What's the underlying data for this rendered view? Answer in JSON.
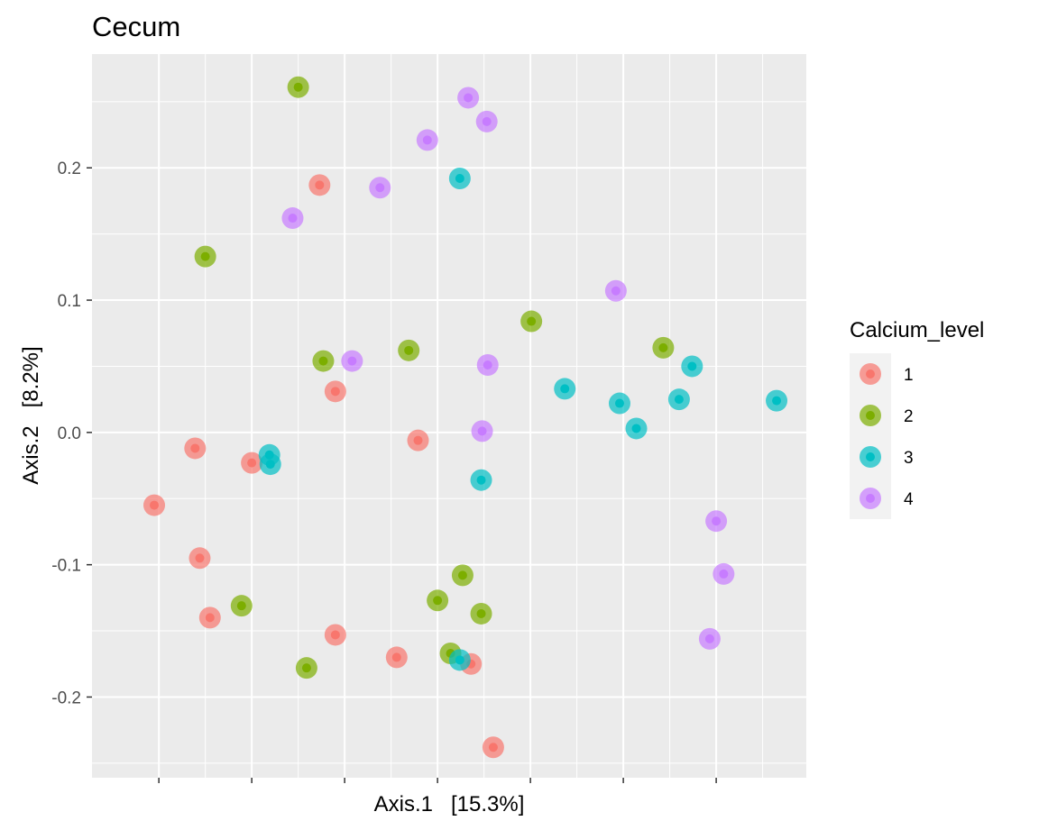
{
  "chart_data": {
    "type": "scatter",
    "title": "Cecum",
    "xlabel": "Axis.1   [15.3%]",
    "ylabel": "Axis.2   [8.2%]",
    "xlim": [
      -0.372,
      0.397
    ],
    "ylim": [
      -0.261,
      0.286
    ],
    "x_major_breaks": [
      -0.3,
      -0.2,
      -0.1,
      0.0,
      0.1,
      0.2,
      0.3
    ],
    "x_minor_breaks": [
      -0.25,
      -0.15,
      -0.05,
      0.05,
      0.15,
      0.25,
      0.35
    ],
    "y_ticks": [
      -0.2,
      -0.1,
      0.0,
      0.1,
      0.2
    ],
    "y_tick_labels": [
      "-0.2",
      "-0.1",
      "0.0",
      "0.1",
      "0.2"
    ],
    "grid": true,
    "legend": {
      "title": "Calcium_level",
      "position": "right",
      "entries": [
        {
          "label": "1",
          "color": "#F8766D"
        },
        {
          "label": "2",
          "color": "#7CAE00"
        },
        {
          "label": "3",
          "color": "#00BFC4"
        },
        {
          "label": "4",
          "color": "#C77CFF"
        }
      ]
    },
    "series": [
      {
        "name": "1",
        "color": "#F8766D",
        "points": [
          [
            -0.127,
            0.187
          ],
          [
            -0.11,
            0.031
          ],
          [
            -0.305,
            -0.055
          ],
          [
            -0.261,
            -0.012
          ],
          [
            -0.2,
            -0.023
          ],
          [
            -0.256,
            -0.095
          ],
          [
            -0.245,
            -0.14
          ],
          [
            -0.11,
            -0.153
          ],
          [
            -0.044,
            -0.17
          ],
          [
            -0.021,
            -0.006
          ],
          [
            0.036,
            -0.175
          ],
          [
            0.06,
            -0.238
          ]
        ]
      },
      {
        "name": "2",
        "color": "#7CAE00",
        "points": [
          [
            -0.15,
            0.261
          ],
          [
            -0.25,
            0.133
          ],
          [
            -0.123,
            0.054
          ],
          [
            -0.031,
            0.062
          ],
          [
            0.101,
            0.084
          ],
          [
            0.243,
            0.064
          ],
          [
            -0.211,
            -0.131
          ],
          [
            -0.141,
            -0.178
          ],
          [
            0.0,
            -0.127
          ],
          [
            0.027,
            -0.108
          ],
          [
            0.047,
            -0.137
          ],
          [
            0.014,
            -0.167
          ]
        ]
      },
      {
        "name": "3",
        "color": "#00BFC4",
        "points": [
          [
            0.024,
            0.192
          ],
          [
            -0.181,
            -0.017
          ],
          [
            -0.18,
            -0.024
          ],
          [
            0.047,
            -0.036
          ],
          [
            0.137,
            0.033
          ],
          [
            0.196,
            0.022
          ],
          [
            0.214,
            0.003
          ],
          [
            0.26,
            0.025
          ],
          [
            0.274,
            0.05
          ],
          [
            0.365,
            0.024
          ],
          [
            0.024,
            -0.172
          ]
        ]
      },
      {
        "name": "4",
        "color": "#C77CFF",
        "points": [
          [
            0.033,
            0.253
          ],
          [
            0.053,
            0.235
          ],
          [
            -0.011,
            0.221
          ],
          [
            -0.062,
            0.185
          ],
          [
            -0.156,
            0.162
          ],
          [
            -0.092,
            0.054
          ],
          [
            0.054,
            0.051
          ],
          [
            0.048,
            0.001
          ],
          [
            0.192,
            0.107
          ],
          [
            0.3,
            -0.067
          ],
          [
            0.308,
            -0.107
          ],
          [
            0.293,
            -0.156
          ]
        ]
      }
    ]
  }
}
